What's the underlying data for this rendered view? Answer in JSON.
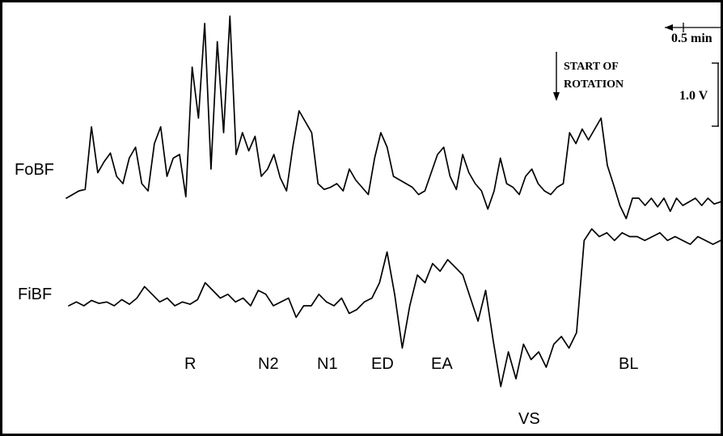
{
  "chart_data": {
    "type": "line",
    "title": "",
    "xlabel": "",
    "ylabel": "",
    "legend": "none",
    "grid": false,
    "scale_bars": {
      "time": {
        "label": "0.5 min",
        "value": 0.5,
        "unit": "min"
      },
      "voltage": {
        "label": "1.0 V",
        "value": 1.0,
        "unit": "V"
      }
    },
    "annotation": {
      "line1": "START OF",
      "line2": "ROTATION"
    },
    "series": [
      {
        "name": "FoBF",
        "values": [
          0.0,
          0.05,
          0.1,
          0.12,
          0.98,
          0.35,
          0.5,
          0.62,
          0.3,
          0.2,
          0.55,
          0.7,
          0.2,
          0.1,
          0.75,
          0.98,
          0.3,
          0.55,
          0.6,
          0.02,
          1.8,
          1.1,
          2.4,
          0.4,
          2.15,
          0.9,
          2.5,
          0.6,
          0.9,
          0.65,
          0.85,
          0.3,
          0.4,
          0.6,
          0.28,
          0.1,
          0.7,
          1.2,
          1.05,
          0.9,
          0.2,
          0.12,
          0.15,
          0.2,
          0.1,
          0.4,
          0.25,
          0.15,
          0.05,
          0.55,
          0.9,
          0.7,
          0.3,
          0.25,
          0.2,
          0.15,
          0.05,
          0.1,
          0.35,
          0.6,
          0.7,
          0.3,
          0.12,
          0.6,
          0.35,
          0.2,
          0.1,
          -0.15,
          0.1,
          0.55,
          0.2,
          0.15,
          0.05,
          0.3,
          0.4,
          0.2,
          0.1,
          0.05,
          0.15,
          0.2,
          0.9,
          0.75,
          0.95,
          0.8,
          0.95,
          1.1,
          0.45,
          0.18,
          -0.1,
          -0.28,
          0.0,
          0.0,
          -0.1,
          0.0,
          -0.12,
          0.0,
          -0.18,
          0.0,
          -0.1,
          -0.05,
          0.0,
          -0.1,
          0.0,
          -0.08,
          -0.05
        ]
      },
      {
        "name": "FiBF",
        "values": [
          0.0,
          0.05,
          0.0,
          0.07,
          0.03,
          0.05,
          0.0,
          0.08,
          0.02,
          0.1,
          0.25,
          0.15,
          0.05,
          0.1,
          0.0,
          0.05,
          0.02,
          0.08,
          0.3,
          0.2,
          0.1,
          0.15,
          0.05,
          0.1,
          0.0,
          0.2,
          0.15,
          0.0,
          0.05,
          0.1,
          -0.15,
          0.0,
          0.0,
          0.15,
          0.05,
          0.0,
          0.1,
          -0.1,
          -0.05,
          0.05,
          0.1,
          0.3,
          0.7,
          0.15,
          -0.55,
          0.0,
          0.4,
          0.3,
          0.55,
          0.45,
          0.6,
          0.5,
          0.4,
          0.1,
          -0.2,
          0.2,
          -0.45,
          -1.05,
          -0.6,
          -0.95,
          -0.5,
          -0.7,
          -0.6,
          -0.8,
          -0.5,
          -0.4,
          -0.55,
          -0.35,
          0.85,
          1.0,
          0.9,
          0.95,
          0.85,
          0.95,
          0.9,
          0.9,
          0.85,
          0.9,
          0.95,
          0.85,
          0.9,
          0.85,
          0.8,
          0.9,
          0.85,
          0.8,
          0.85
        ]
      }
    ],
    "phase_labels": [
      "R",
      "N2",
      "N1",
      "ED",
      "EA",
      "VS",
      "BL"
    ]
  }
}
